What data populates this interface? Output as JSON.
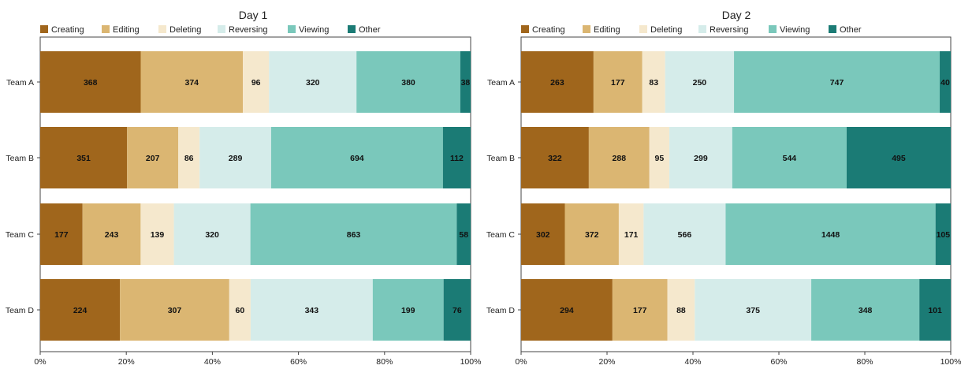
{
  "chart_data": [
    {
      "type": "bar",
      "orientation": "horizontal",
      "stacked": true,
      "normalized": true,
      "title": "Day 1",
      "categories": [
        "Team A",
        "Team B",
        "Team C",
        "Team D"
      ],
      "series": [
        {
          "name": "Creating",
          "color": "#a0661c",
          "values": [
            368,
            351,
            177,
            224
          ]
        },
        {
          "name": "Editing",
          "color": "#dbb672",
          "values": [
            374,
            207,
            243,
            307
          ]
        },
        {
          "name": "Deleting",
          "color": "#f5e8cd",
          "values": [
            96,
            86,
            139,
            60
          ]
        },
        {
          "name": "Reversing",
          "color": "#d5ecea",
          "values": [
            320,
            289,
            320,
            343
          ]
        },
        {
          "name": "Viewing",
          "color": "#7ac8bb",
          "values": [
            380,
            694,
            863,
            199
          ]
        },
        {
          "name": "Other",
          "color": "#1b7b75",
          "values": [
            38,
            112,
            58,
            76
          ]
        }
      ],
      "xticks": [
        "0%",
        "20%",
        "40%",
        "60%",
        "80%",
        "100%"
      ],
      "xlim": [
        0,
        100
      ],
      "legend": "top-left"
    },
    {
      "type": "bar",
      "orientation": "horizontal",
      "stacked": true,
      "normalized": true,
      "title": "Day 2",
      "categories": [
        "Team A",
        "Team B",
        "Team C",
        "Team D"
      ],
      "series": [
        {
          "name": "Creating",
          "color": "#a0661c",
          "values": [
            263,
            322,
            302,
            294
          ]
        },
        {
          "name": "Editing",
          "color": "#dbb672",
          "values": [
            177,
            288,
            372,
            177
          ]
        },
        {
          "name": "Deleting",
          "color": "#f5e8cd",
          "values": [
            83,
            95,
            171,
            88
          ]
        },
        {
          "name": "Reversing",
          "color": "#d5ecea",
          "values": [
            250,
            299,
            566,
            375
          ]
        },
        {
          "name": "Viewing",
          "color": "#7ac8bb",
          "values": [
            747,
            544,
            1448,
            348
          ]
        },
        {
          "name": "Other",
          "color": "#1b7b75",
          "values": [
            40,
            495,
            105,
            101
          ]
        }
      ],
      "xticks": [
        "0%",
        "20%",
        "40%",
        "60%",
        "80%",
        "100%"
      ],
      "xlim": [
        0,
        100
      ],
      "legend": "top-left"
    }
  ]
}
